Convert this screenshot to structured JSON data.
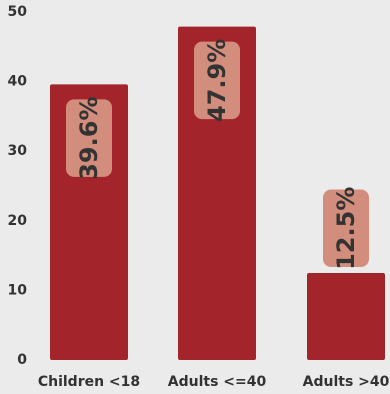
{
  "chart_data": {
    "type": "bar",
    "categories": [
      "Children <18",
      "Adults <=40",
      "Adults >40"
    ],
    "values": [
      39.6,
      47.9,
      12.5
    ],
    "data_labels": [
      "39.6%",
      "47.9%",
      "12.5%"
    ],
    "y_ticks": [
      "0",
      "10",
      "20",
      "30",
      "40",
      "50"
    ],
    "ylim": [
      0,
      50
    ],
    "grid": false,
    "legend": "none",
    "title": "",
    "xlabel": "",
    "ylabel": "",
    "colors": {
      "background": "#ebebeb",
      "bar": "#a3242b",
      "label_box": "#d38d7c",
      "label_text": "#333333",
      "axis_text": "#333333"
    }
  }
}
